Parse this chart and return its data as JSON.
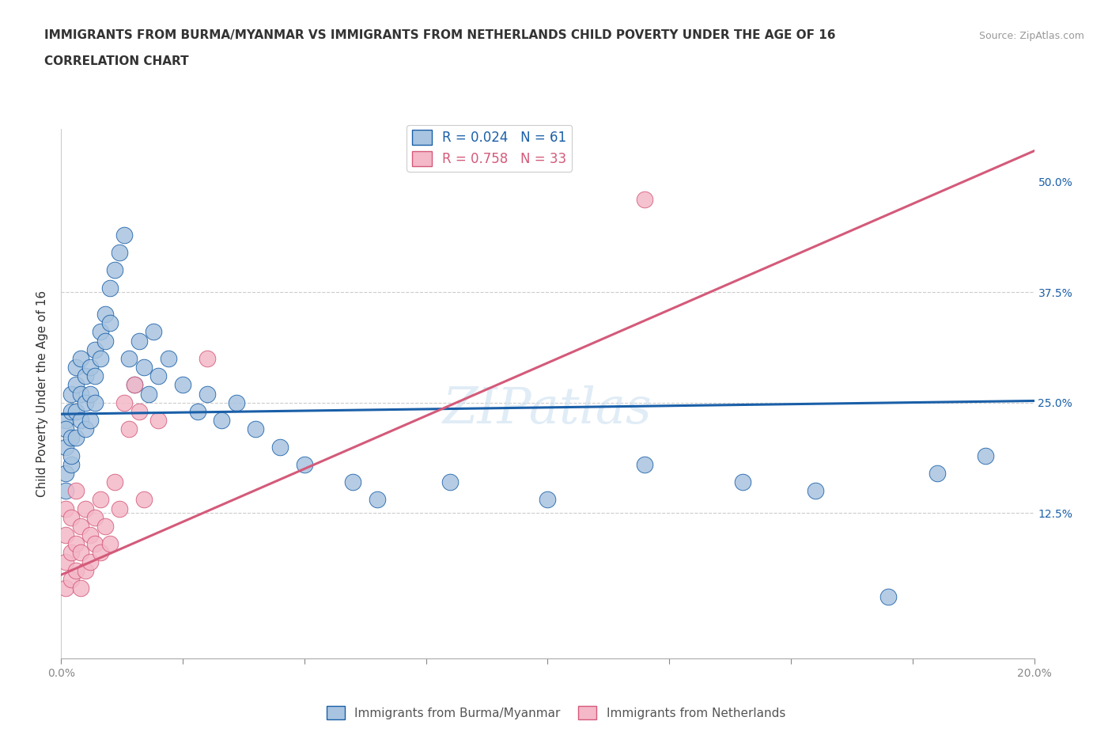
{
  "title_line1": "IMMIGRANTS FROM BURMA/MYANMAR VS IMMIGRANTS FROM NETHERLANDS CHILD POVERTY UNDER THE AGE OF 16",
  "title_line2": "CORRELATION CHART",
  "source": "Source: ZipAtlas.com",
  "ylabel": "Child Poverty Under the Age of 16",
  "watermark": "ZIPatlas",
  "blue_R": 0.024,
  "blue_N": 61,
  "pink_R": 0.758,
  "pink_N": 33,
  "blue_color": "#a8c4e0",
  "pink_color": "#f4b8c8",
  "blue_line_color": "#1a5fa8",
  "pink_line_color": "#d45a7a",
  "legend_blue_label": "Immigrants from Burma/Myanmar",
  "legend_pink_label": "Immigrants from Netherlands",
  "blue_dots_x": [
    0.001,
    0.001,
    0.001,
    0.001,
    0.001,
    0.002,
    0.002,
    0.002,
    0.002,
    0.002,
    0.003,
    0.003,
    0.003,
    0.003,
    0.004,
    0.004,
    0.004,
    0.005,
    0.005,
    0.005,
    0.006,
    0.006,
    0.006,
    0.007,
    0.007,
    0.007,
    0.008,
    0.008,
    0.009,
    0.009,
    0.01,
    0.01,
    0.011,
    0.012,
    0.013,
    0.014,
    0.015,
    0.016,
    0.017,
    0.018,
    0.019,
    0.02,
    0.022,
    0.025,
    0.028,
    0.03,
    0.033,
    0.036,
    0.04,
    0.045,
    0.05,
    0.06,
    0.065,
    0.08,
    0.1,
    0.12,
    0.14,
    0.155,
    0.17,
    0.18,
    0.19
  ],
  "blue_dots_y": [
    0.2,
    0.23,
    0.17,
    0.15,
    0.22,
    0.24,
    0.21,
    0.18,
    0.26,
    0.19,
    0.27,
    0.24,
    0.21,
    0.29,
    0.3,
    0.26,
    0.23,
    0.28,
    0.25,
    0.22,
    0.29,
    0.26,
    0.23,
    0.31,
    0.28,
    0.25,
    0.33,
    0.3,
    0.35,
    0.32,
    0.38,
    0.34,
    0.4,
    0.42,
    0.44,
    0.3,
    0.27,
    0.32,
    0.29,
    0.26,
    0.33,
    0.28,
    0.3,
    0.27,
    0.24,
    0.26,
    0.23,
    0.25,
    0.22,
    0.2,
    0.18,
    0.16,
    0.14,
    0.16,
    0.14,
    0.18,
    0.16,
    0.15,
    0.03,
    0.17,
    0.19
  ],
  "pink_dots_x": [
    0.001,
    0.001,
    0.001,
    0.001,
    0.002,
    0.002,
    0.002,
    0.003,
    0.003,
    0.003,
    0.004,
    0.004,
    0.004,
    0.005,
    0.005,
    0.006,
    0.006,
    0.007,
    0.007,
    0.008,
    0.008,
    0.009,
    0.01,
    0.011,
    0.012,
    0.013,
    0.014,
    0.015,
    0.016,
    0.017,
    0.02,
    0.03,
    0.12
  ],
  "pink_dots_y": [
    0.1,
    0.07,
    0.04,
    0.13,
    0.08,
    0.05,
    0.12,
    0.09,
    0.06,
    0.15,
    0.11,
    0.08,
    0.04,
    0.13,
    0.06,
    0.1,
    0.07,
    0.12,
    0.09,
    0.14,
    0.08,
    0.11,
    0.09,
    0.16,
    0.13,
    0.25,
    0.22,
    0.27,
    0.24,
    0.14,
    0.23,
    0.3,
    0.48
  ],
  "xlim": [
    0.0,
    0.2
  ],
  "ylim": [
    -0.04,
    0.56
  ],
  "blue_trend_x": [
    0.0,
    0.2
  ],
  "blue_trend_y": [
    0.237,
    0.252
  ],
  "pink_trend_x": [
    0.0,
    0.2
  ],
  "pink_trend_y": [
    0.055,
    0.535
  ],
  "yticks": [
    0.0,
    0.125,
    0.25,
    0.375,
    0.5
  ],
  "ytick_labels_right": [
    "",
    "12.5%",
    "25.0%",
    "37.5%",
    "50.0%"
  ],
  "xticks": [
    0.0,
    0.025,
    0.05,
    0.075,
    0.1,
    0.125,
    0.15,
    0.175,
    0.2
  ],
  "xtick_labels": [
    "0.0%",
    "",
    "",
    "",
    "",
    "",
    "",
    "",
    "20.0%"
  ]
}
